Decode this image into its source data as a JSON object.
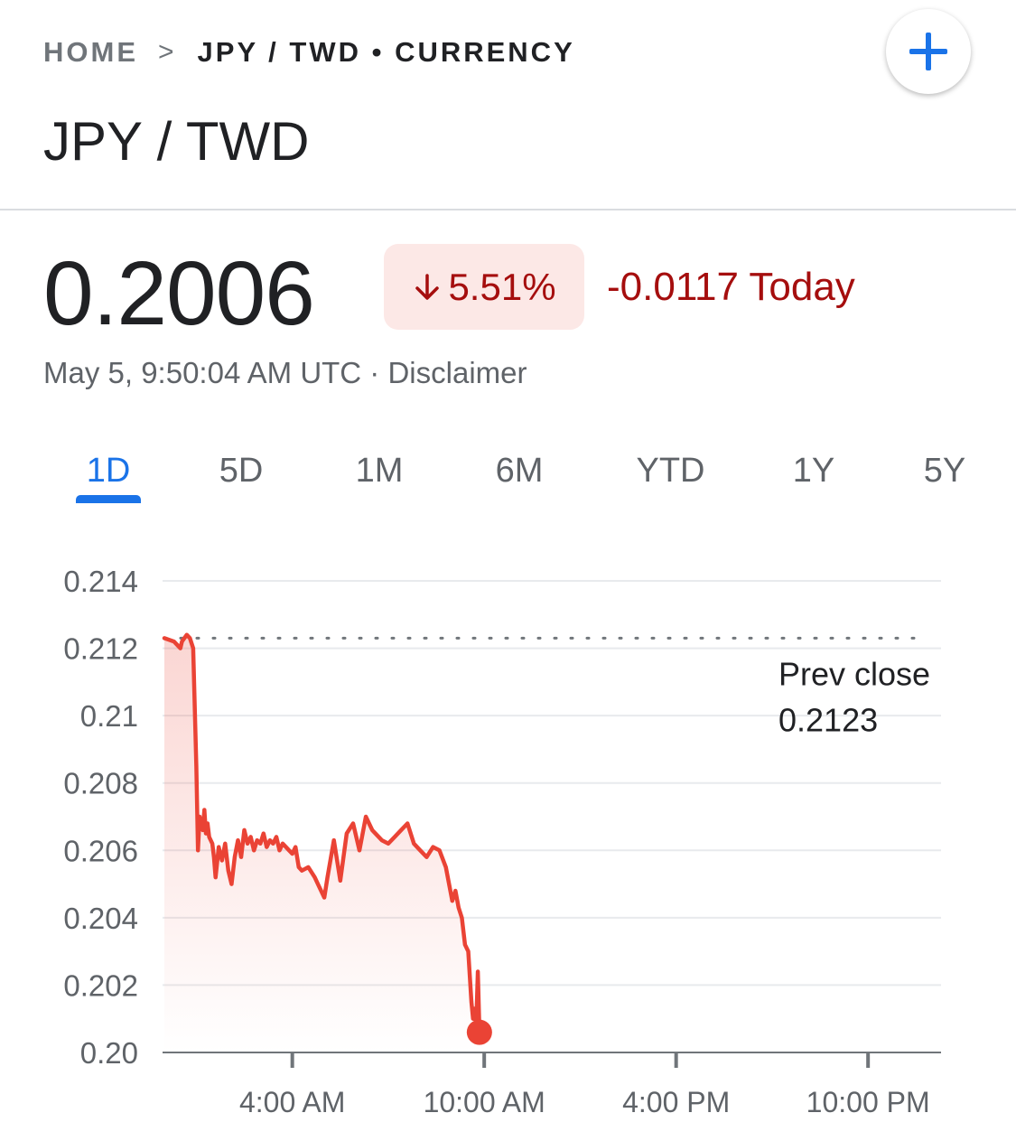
{
  "breadcrumb": {
    "home": "HOME",
    "separator": ">",
    "current": "JPY / TWD • CURRENCY"
  },
  "header": {
    "title": "JPY / TWD",
    "add_icon": "plus-icon"
  },
  "quote": {
    "price": "0.2006",
    "change_percent": "5.51%",
    "change_direction_icon": "arrow-down-icon",
    "change_today": "-0.0117 Today",
    "timestamp": "May 5, 9:50:04 AM UTC · ",
    "disclaimer": "Disclaimer"
  },
  "tabs": [
    {
      "label": "1D",
      "active": true
    },
    {
      "label": "5D",
      "active": false
    },
    {
      "label": "1M",
      "active": false
    },
    {
      "label": "6M",
      "active": false
    },
    {
      "label": "YTD",
      "active": false
    },
    {
      "label": "1Y",
      "active": false
    },
    {
      "label": "5Y",
      "active": false
    }
  ],
  "colors": {
    "accent": "#1a73e8",
    "negative": "#a50e0e",
    "line": "#ea4335",
    "badge_bg": "#fce8e6"
  },
  "chart_data": {
    "type": "line",
    "ylim": [
      0.2,
      0.214
    ],
    "y_ticks": [
      "0.214",
      "0.212",
      "0.21",
      "0.208",
      "0.206",
      "0.204",
      "0.202",
      "0.20"
    ],
    "y_tick_values": [
      0.214,
      0.212,
      0.21,
      0.208,
      0.206,
      0.204,
      0.202,
      0.2
    ],
    "x_range_hours": [
      0,
      24
    ],
    "x_ticks": [
      {
        "hour": 4,
        "label": "4:00 AM"
      },
      {
        "hour": 10,
        "label": "10:00 AM"
      },
      {
        "hour": 16,
        "label": "4:00 PM"
      },
      {
        "hour": 22,
        "label": "10:00 PM"
      }
    ],
    "prev_close_label": "Prev close",
    "prev_close": "0.2123",
    "prev_close_value": 0.2123,
    "series": [
      {
        "x": [
          0.0,
          0.3,
          0.5,
          0.55,
          0.7,
          0.8,
          0.9,
          1.0,
          1.05,
          1.1,
          1.2,
          1.25,
          1.3,
          1.35,
          1.4,
          1.5,
          1.55,
          1.6,
          1.7,
          1.8,
          1.9,
          2.0,
          2.1,
          2.2,
          2.3,
          2.4,
          2.5,
          2.6,
          2.7,
          2.8,
          2.9,
          3.0,
          3.1,
          3.2,
          3.3,
          3.4,
          3.5,
          3.6,
          3.7,
          3.8,
          3.9,
          4.0,
          4.1,
          4.2,
          4.3,
          4.5,
          4.7,
          4.8,
          5.0,
          5.1,
          5.3,
          5.5,
          5.7,
          5.9,
          6.1,
          6.3,
          6.5,
          6.8,
          7.0,
          7.2,
          7.4,
          7.6,
          7.8,
          8.0,
          8.2,
          8.4,
          8.6,
          8.8,
          9.0,
          9.1,
          9.2,
          9.3,
          9.4,
          9.5,
          9.6,
          9.65,
          9.7,
          9.75,
          9.8,
          9.85
        ],
        "values": [
          0.2123,
          0.2122,
          0.212,
          0.2122,
          0.2124,
          0.2123,
          0.212,
          0.2085,
          0.206,
          0.207,
          0.2066,
          0.2072,
          0.2065,
          0.2068,
          0.2064,
          0.2062,
          0.2058,
          0.2052,
          0.2061,
          0.2057,
          0.2062,
          0.2054,
          0.205,
          0.2058,
          0.2063,
          0.2058,
          0.2066,
          0.2062,
          0.2064,
          0.206,
          0.2063,
          0.2062,
          0.2065,
          0.2061,
          0.2063,
          0.2062,
          0.2064,
          0.206,
          0.2062,
          0.2061,
          0.206,
          0.2059,
          0.2061,
          0.2055,
          0.2054,
          0.2055,
          0.2052,
          0.205,
          0.2046,
          0.2052,
          0.2063,
          0.2051,
          0.2065,
          0.2068,
          0.206,
          0.207,
          0.2066,
          0.2063,
          0.2062,
          0.2064,
          0.2066,
          0.2068,
          0.2062,
          0.206,
          0.2058,
          0.2061,
          0.206,
          0.2055,
          0.2045,
          0.2048,
          0.2043,
          0.204,
          0.2032,
          0.203,
          0.2015,
          0.201,
          0.2013,
          0.2008,
          0.2024,
          0.2006
        ]
      }
    ]
  }
}
